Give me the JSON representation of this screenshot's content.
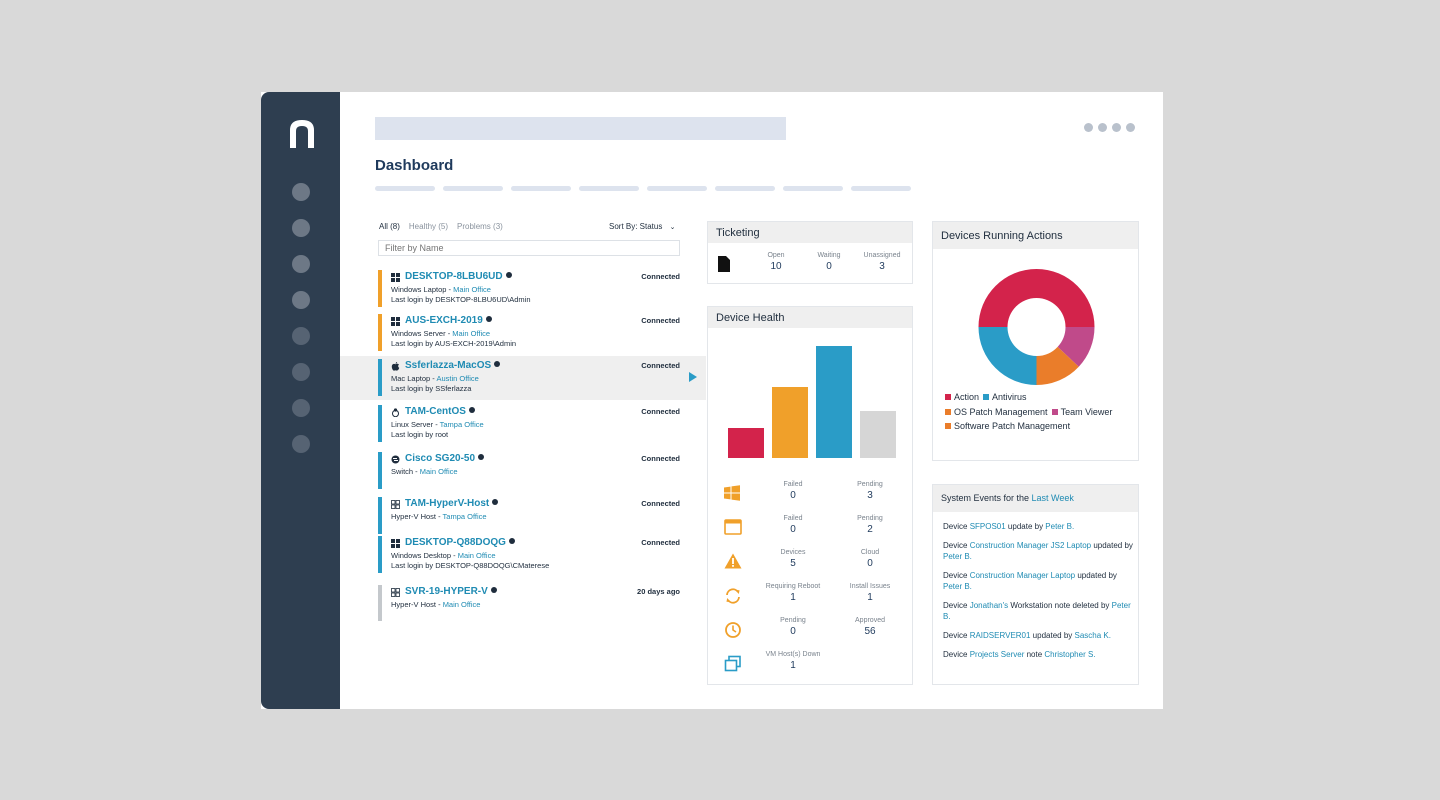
{
  "header": {
    "page_title": "Dashboard"
  },
  "device_list": {
    "filters": [
      "All (8)",
      "Healthy (5)",
      "Problems (3)"
    ],
    "sort_label": "Sort By: Status",
    "filter_placeholder": "Filter by Name",
    "devices": [
      {
        "name": "DESKTOP-8LBU6UD",
        "os_icon": "windows-icon",
        "type": "Windows Laptop",
        "location": "Main Office",
        "login": "Last login by DESKTOP-8LBU6UD\\Admin",
        "status": "Connected",
        "bar_color": "#f0a02a"
      },
      {
        "name": "AUS-EXCH-2019",
        "os_icon": "windows-icon",
        "type": "Windows Server",
        "location": "Main Office",
        "login": "Last login by AUS-EXCH-2019\\Admin",
        "status": "Connected",
        "bar_color": "#f0a02a"
      },
      {
        "name": "Ssferlazza-MacOS",
        "os_icon": "apple-icon",
        "type": "Mac Laptop",
        "location": "Austin Office",
        "login": "Last login by SSferlazza",
        "status": "Connected",
        "bar_color": "#2a9cc7"
      },
      {
        "name": "TAM-CentOS",
        "os_icon": "linux-icon",
        "type": "Linux Server",
        "location": "Tampa Office",
        "login": "Last login by root",
        "status": "Connected",
        "bar_color": "#2a9cc7"
      },
      {
        "name": "Cisco SG20-50",
        "os_icon": "switch-icon",
        "type": "Switch",
        "location": "Main Office",
        "login": "",
        "status": "Connected",
        "bar_color": "#2a9cc7"
      },
      {
        "name": "TAM-HyperV-Host",
        "os_icon": "hyperv-icon",
        "type": "Hyper-V Host",
        "location": "Tampa Office",
        "login": "",
        "status": "Connected",
        "bar_color": "#2a9cc7"
      },
      {
        "name": "DESKTOP-Q88DOQG",
        "os_icon": "windows-icon",
        "type": "Windows Desktop",
        "location": "Main Office",
        "login": "Last login by DESKTOP-Q88DOQG\\CMaterese",
        "status": "Connected",
        "bar_color": "#2a9cc7"
      },
      {
        "name": "SVR-19-HYPER-V",
        "os_icon": "hyperv-icon",
        "type": "Hyper-V Host",
        "location": "Main Office",
        "login": "",
        "status": "20 days ago",
        "bar_color": "#c4c8cc"
      }
    ]
  },
  "ticketing": {
    "title": "Ticketing",
    "stats": [
      {
        "label": "Open",
        "value": "10"
      },
      {
        "label": "Waiting",
        "value": "0"
      },
      {
        "label": "Unassigned",
        "value": "3"
      }
    ]
  },
  "device_health": {
    "title": "Device Health",
    "rows": [
      {
        "icon": "windows-icon",
        "a_label": "Failed",
        "a_value": "0",
        "b_label": "Pending",
        "b_value": "3"
      },
      {
        "icon": "window-icon",
        "a_label": "Failed",
        "a_value": "0",
        "b_label": "Pending",
        "b_value": "2"
      },
      {
        "icon": "warning-icon",
        "a_label": "Devices",
        "a_value": "5",
        "b_label": "Cloud",
        "b_value": "0"
      },
      {
        "icon": "refresh-icon",
        "a_label": "Requiring Reboot",
        "a_value": "1",
        "b_label": "Install Issues",
        "b_value": "1"
      },
      {
        "icon": "clock-icon",
        "a_label": "Pending",
        "a_value": "0",
        "b_label": "Approved",
        "b_value": "56"
      },
      {
        "icon": "vm-host-icon",
        "a_label": "VM Host(s) Down",
        "a_value": "1",
        "b_label": "",
        "b_value": ""
      }
    ]
  },
  "running_actions": {
    "title": "Devices Running Actions"
  },
  "system_events": {
    "title_prefix": "System Events for the ",
    "title_link": "Last Week",
    "events": [
      {
        "parts": [
          [
            "Device ",
            false
          ],
          [
            "SFPOS01",
            true
          ],
          [
            " update by ",
            false
          ],
          [
            "Peter B.",
            true
          ]
        ]
      },
      {
        "parts": [
          [
            "Device ",
            false
          ],
          [
            "Construction Manager JS2 Laptop",
            true
          ],
          [
            " updated by ",
            false
          ],
          [
            "Peter B.",
            true
          ]
        ]
      },
      {
        "parts": [
          [
            "Device ",
            false
          ],
          [
            "Construction Manager Laptop",
            true
          ],
          [
            " updated by ",
            false
          ],
          [
            "Peter B.",
            true
          ]
        ]
      },
      {
        "parts": [
          [
            "Device ",
            false
          ],
          [
            "Jonathan's",
            true
          ],
          [
            " Workstation note deleted by ",
            false
          ],
          [
            "Peter B.",
            true
          ]
        ]
      },
      {
        "parts": [
          [
            "Device ",
            false
          ],
          [
            "RAIDSERVER01",
            true
          ],
          [
            " updated by ",
            false
          ],
          [
            "Sascha K.",
            true
          ]
        ]
      },
      {
        "parts": [
          [
            "Device ",
            false
          ],
          [
            "Projects Server",
            true
          ],
          [
            " note ",
            false
          ],
          [
            "Christopher S.",
            true
          ]
        ]
      }
    ]
  },
  "chart_data": [
    {
      "type": "bar",
      "categories": [
        "1",
        "2",
        "3",
        "4"
      ],
      "values": [
        30,
        71,
        112,
        47
      ],
      "colors": [
        "#d3234b",
        "#f0a02a",
        "#2a9cc7",
        "#d6d6d6"
      ],
      "title": "",
      "ylim": [
        0,
        115
      ]
    },
    {
      "type": "pie",
      "labels": [
        "Action",
        "Antivirus",
        "OS Patch Management",
        "Team Viewer",
        "Software Patch Management"
      ],
      "values": [
        50,
        25,
        0,
        12,
        13
      ],
      "colors": [
        "#d3234b",
        "#2a9cc7",
        "#ea7d2a",
        "#c04a8a",
        "#ea7d2a"
      ],
      "donut": true
    }
  ]
}
